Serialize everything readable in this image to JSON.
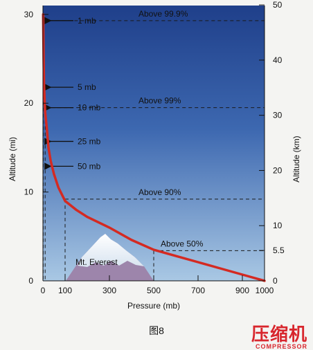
{
  "chart_data": {
    "type": "line",
    "x_ticks": [
      "0",
      "100",
      "300",
      "500",
      "700",
      "900",
      "1000"
    ],
    "y_left_ticks": [
      "0",
      "10",
      "20",
      "30"
    ],
    "y_right_ticks": [
      "0",
      "5.5",
      "10",
      "20",
      "30",
      "40",
      "50"
    ],
    "xlabel": "Pressure (mb)",
    "ylabel_left": "Altitude (mi)",
    "ylabel_right": "Altitude (km)",
    "xlim": [
      0,
      1000
    ],
    "ylim_mi": [
      0,
      31
    ],
    "series": [
      {
        "x": [
          1,
          3,
          5,
          10,
          18,
          25,
          35,
          50,
          70,
          100,
          150,
          200,
          300,
          400,
          500,
          600,
          700,
          800,
          900,
          1000
        ],
        "y": [
          30,
          25,
          22,
          19,
          17,
          15,
          13.5,
          12,
          10.5,
          9,
          8,
          7.2,
          6,
          4.6,
          3.5,
          2.8,
          2.1,
          1.4,
          0.7,
          0
        ]
      }
    ],
    "annotations": [
      {
        "label": "Above 99.9%",
        "pressure_mb": 1,
        "altitude_mi": 29.3,
        "line": "dashed"
      },
      {
        "label": "Above 99%",
        "pressure_mb": 10,
        "altitude_mi": 19.5,
        "line": "dashed"
      },
      {
        "label": "Above 90%",
        "pressure_mb": 100,
        "altitude_mi": 9.2,
        "line": "dashed"
      },
      {
        "label": "Above 50%",
        "pressure_mb": 500,
        "altitude_mi": 3.4,
        "line": "dashed"
      }
    ],
    "arrow_labels": [
      {
        "label": "1 mb",
        "altitude_mi": 29.3
      },
      {
        "label": "5 mb",
        "altitude_mi": 21.8
      },
      {
        "label": "10 mb",
        "altitude_mi": 19.5
      },
      {
        "label": "25 mb",
        "altitude_mi": 15.7
      },
      {
        "label": "50 mb",
        "altitude_mi": 12.9
      }
    ],
    "mountain_label": "Mt. Everest",
    "colors": {
      "curve": "#d42a22",
      "sky_top": "#1f3f8a",
      "sky_bottom": "#a9c8e4",
      "mountain": "#9d85ab"
    }
  },
  "caption": "图8",
  "logo": {
    "cn": "压缩机",
    "en": "COMPRESSOR"
  }
}
